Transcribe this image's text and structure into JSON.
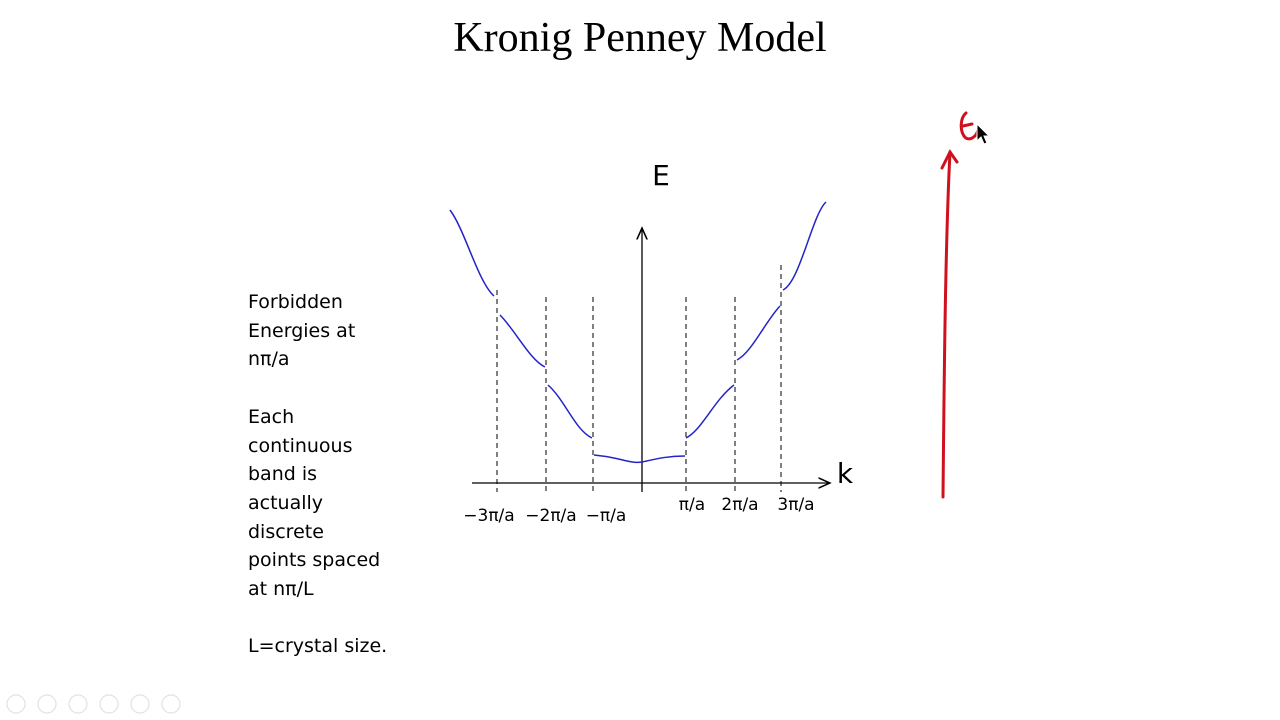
{
  "title": "Kronig Penney Model",
  "notes": [
    [
      "Forbidden",
      "Energies at",
      "nπ/a"
    ],
    [
      "Each",
      "continuous",
      "band is",
      "actually",
      "discrete",
      "points spaced",
      "at nπ/L"
    ],
    [
      "L=crystal size."
    ]
  ],
  "diagram": {
    "y_axis_label": "E",
    "x_axis_label": "k",
    "negative_ticks": [
      "−3π/a",
      "−2π/a",
      "−π/a"
    ],
    "positive_ticks": [
      "π/a",
      "2π/a",
      "3π/a"
    ]
  }
}
